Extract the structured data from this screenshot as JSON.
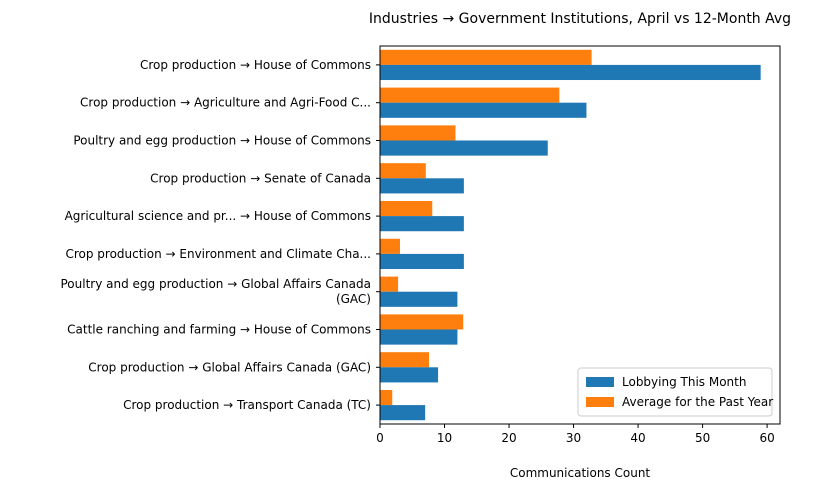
{
  "chart_data": {
    "type": "bar",
    "orientation": "horizontal",
    "title": "Industries → Government Institutions, April vs 12-Month Avg",
    "xlabel": "Communications Count",
    "ylabel": "",
    "xlim": [
      0,
      62
    ],
    "xticks": [
      0,
      10,
      20,
      30,
      40,
      50,
      60
    ],
    "grid": false,
    "legend_position": "lower-right",
    "categories": [
      [
        "Crop production → House of Commons"
      ],
      [
        "Crop production → Agriculture and Agri-Food C..."
      ],
      [
        "Poultry and egg production → House of Commons"
      ],
      [
        "Crop production → Senate of Canada"
      ],
      [
        "Agricultural science and pr... → House of Commons"
      ],
      [
        "Crop production → Environment and Climate Cha..."
      ],
      [
        "Poultry and egg production → Global Affairs Canada",
        "(GAC)"
      ],
      [
        "Cattle ranching and farming → House of Commons"
      ],
      [
        "Crop production → Global Affairs Canada (GAC)"
      ],
      [
        "Crop production → Transport Canada (TC)"
      ]
    ],
    "series": [
      {
        "name": "Lobbying This Month",
        "color": "#1f77b4",
        "values": [
          59,
          32,
          26,
          13,
          13,
          13,
          12,
          12,
          9,
          7
        ]
      },
      {
        "name": "Average for the Past Year",
        "color": "#ff7f0e",
        "values": [
          32.8,
          27.8,
          11.7,
          7.1,
          8.1,
          3.1,
          2.8,
          12.9,
          7.6,
          1.9
        ]
      }
    ]
  }
}
